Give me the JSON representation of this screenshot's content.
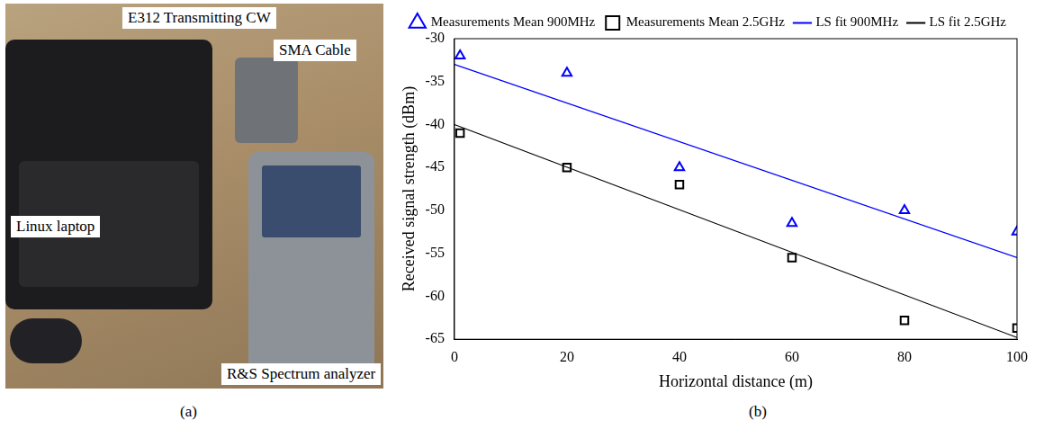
{
  "photo": {
    "caption": "(a)",
    "labels": [
      "E312 Transmitting CW",
      "SMA Cable",
      "Linux laptop",
      "R&S Spectrum analyzer"
    ]
  },
  "chart_data": {
    "caption": "(b)",
    "type": "scatter",
    "x_label": "Horizontal distance (m)",
    "y_label": "Received signal strength (dBm)",
    "xlim": [
      0,
      100
    ],
    "xticks": [
      0,
      20,
      40,
      60,
      80,
      100
    ],
    "ylim": [
      -65,
      -30
    ],
    "yticks": [
      -65,
      -60,
      -55,
      -50,
      -45,
      -40,
      -35,
      -30
    ],
    "grid": false,
    "legend": "top",
    "series": [
      {
        "name": "Measurements Mean 900MHz",
        "type": "scatter",
        "color": "#0000ff",
        "marker": "triangle",
        "line_style": "none",
        "x": [
          1,
          20,
          40,
          60,
          80,
          100
        ],
        "values": [
          -32,
          -34,
          -45,
          -51.5,
          -50,
          -52.5
        ]
      },
      {
        "name": "LS fit 900MHz",
        "type": "line",
        "color": "#0000ff",
        "marker": "none",
        "line_style": "solid",
        "x": [
          0,
          100
        ],
        "values": [
          -33,
          -55.5
        ]
      },
      {
        "name": "Measurements Mean 2.5GHz",
        "type": "scatter",
        "color": "#000000",
        "marker": "square",
        "line_style": "none",
        "x": [
          1,
          20,
          40,
          60,
          80,
          100
        ],
        "values": [
          -41,
          -45,
          -47,
          -55.5,
          -62.8,
          -63.7
        ]
      },
      {
        "name": "LS fit 2.5GHz",
        "type": "line",
        "color": "#000000",
        "marker": "none",
        "line_style": "solid",
        "x": [
          0,
          100
        ],
        "values": [
          -40,
          -64.8
        ]
      }
    ]
  }
}
